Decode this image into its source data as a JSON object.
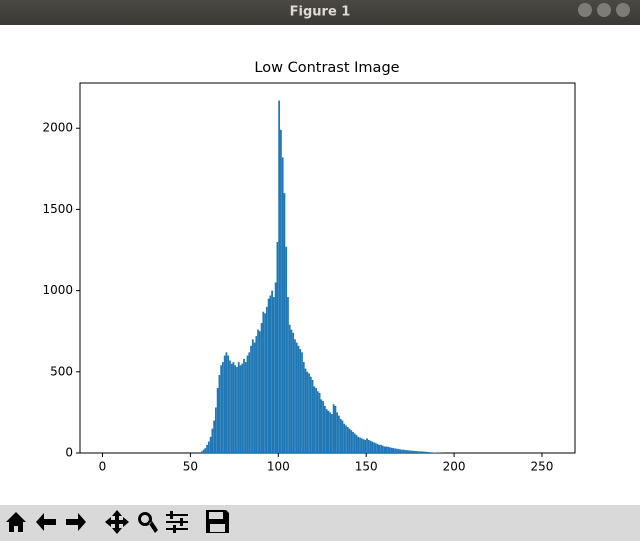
{
  "window": {
    "title": "Figure 1"
  },
  "chart_data": {
    "type": "histogram",
    "title": "Low Contrast Image",
    "color": "#1f77b4",
    "bins": [
      0,
      1,
      2,
      3,
      4,
      5,
      6,
      7,
      8,
      9,
      10,
      11,
      12,
      13,
      14,
      15,
      16,
      17,
      18,
      19,
      20,
      21,
      22,
      23,
      24,
      25,
      26,
      27,
      28,
      29,
      30,
      31,
      32,
      33,
      34,
      35,
      36,
      37,
      38,
      39,
      40,
      41,
      42,
      43,
      44,
      45,
      46,
      47,
      48,
      49,
      50,
      51,
      52,
      53,
      54,
      55,
      56,
      57,
      58,
      59,
      60,
      61,
      62,
      63,
      64,
      65,
      66,
      67,
      68,
      69,
      70,
      71,
      72,
      73,
      74,
      75,
      76,
      77,
      78,
      79,
      80,
      81,
      82,
      83,
      84,
      85,
      86,
      87,
      88,
      89,
      90,
      91,
      92,
      93,
      94,
      95,
      96,
      97,
      98,
      99,
      100,
      101,
      102,
      103,
      104,
      105,
      106,
      107,
      108,
      109,
      110,
      111,
      112,
      113,
      114,
      115,
      116,
      117,
      118,
      119,
      120,
      121,
      122,
      123,
      124,
      125,
      126,
      127,
      128,
      129,
      130,
      131,
      132,
      133,
      134,
      135,
      136,
      137,
      138,
      139,
      140,
      141,
      142,
      143,
      144,
      145,
      146,
      147,
      148,
      149,
      150,
      151,
      152,
      153,
      154,
      155,
      156,
      157,
      158,
      159,
      160,
      161,
      162,
      163,
      164,
      165,
      166,
      167,
      168,
      169,
      170,
      171,
      172,
      173,
      174,
      175,
      176,
      177,
      178,
      179,
      180,
      181,
      182,
      183,
      184,
      185,
      186,
      187,
      188,
      189,
      190,
      191,
      192,
      193,
      194,
      195,
      196,
      197,
      198,
      199,
      200,
      201,
      202,
      203,
      204,
      205,
      206,
      207,
      208,
      209,
      210,
      211,
      212,
      213,
      214,
      215,
      216,
      217,
      218,
      219,
      220,
      221,
      222,
      223,
      224,
      225,
      226,
      227,
      228,
      229,
      230,
      231,
      232,
      233,
      234,
      235,
      236,
      237,
      238,
      239,
      240,
      241,
      242,
      243,
      244,
      245,
      246,
      247,
      248,
      249,
      250,
      251,
      252,
      253,
      254,
      255,
      256
    ],
    "values": [
      0,
      0,
      0,
      0,
      0,
      0,
      0,
      0,
      0,
      0,
      0,
      0,
      0,
      0,
      0,
      0,
      0,
      0,
      0,
      0,
      0,
      0,
      0,
      0,
      0,
      0,
      0,
      0,
      0,
      0,
      0,
      0,
      0,
      0,
      0,
      0,
      0,
      0,
      0,
      0,
      0,
      0,
      0,
      0,
      0,
      0,
      0,
      0,
      0,
      0,
      0,
      0,
      0,
      0,
      0,
      5,
      10,
      20,
      30,
      50,
      70,
      100,
      150,
      200,
      280,
      400,
      480,
      540,
      560,
      600,
      620,
      600,
      570,
      550,
      560,
      540,
      530,
      560,
      540,
      550,
      580,
      560,
      600,
      620,
      660,
      700,
      680,
      720,
      760,
      750,
      800,
      870,
      860,
      900,
      950,
      970,
      1000,
      960,
      1050,
      1300,
      2170,
      1990,
      1820,
      1600,
      1270,
      960,
      790,
      760,
      740,
      700,
      680,
      660,
      640,
      620,
      560,
      520,
      500,
      490,
      470,
      450,
      410,
      400,
      380,
      370,
      330,
      320,
      290,
      270,
      260,
      250,
      240,
      300,
      290,
      250,
      230,
      210,
      200,
      180,
      170,
      160,
      150,
      140,
      130,
      120,
      110,
      100,
      95,
      90,
      85,
      80,
      90,
      80,
      75,
      70,
      65,
      60,
      55,
      50,
      50,
      45,
      40,
      40,
      38,
      35,
      32,
      30,
      28,
      26,
      24,
      22,
      20,
      20,
      18,
      17,
      16,
      15,
      14,
      13,
      12,
      11,
      10,
      10,
      9,
      8,
      7,
      6,
      5,
      4,
      3,
      3,
      2,
      2,
      1,
      1,
      0,
      0,
      0,
      0,
      0,
      0,
      0,
      0,
      0,
      0,
      0,
      0,
      0,
      0,
      0,
      0,
      0,
      0,
      0,
      0,
      0,
      0,
      0,
      0,
      0,
      0,
      0,
      0,
      0,
      0,
      0,
      0,
      0,
      0,
      0,
      0,
      0,
      0,
      0,
      0,
      0,
      0,
      0,
      0,
      0,
      0,
      0,
      0,
      0,
      0,
      0,
      0,
      0,
      0,
      0,
      0,
      0,
      0,
      0,
      0,
      0,
      0
    ],
    "xlim": [
      -12.8,
      268.8
    ],
    "ylim": [
      0,
      2278.5
    ],
    "xticks": [
      0,
      50,
      100,
      150,
      200,
      250
    ],
    "yticks": [
      0,
      500,
      1000,
      1500,
      2000
    ],
    "grid": false
  }
}
